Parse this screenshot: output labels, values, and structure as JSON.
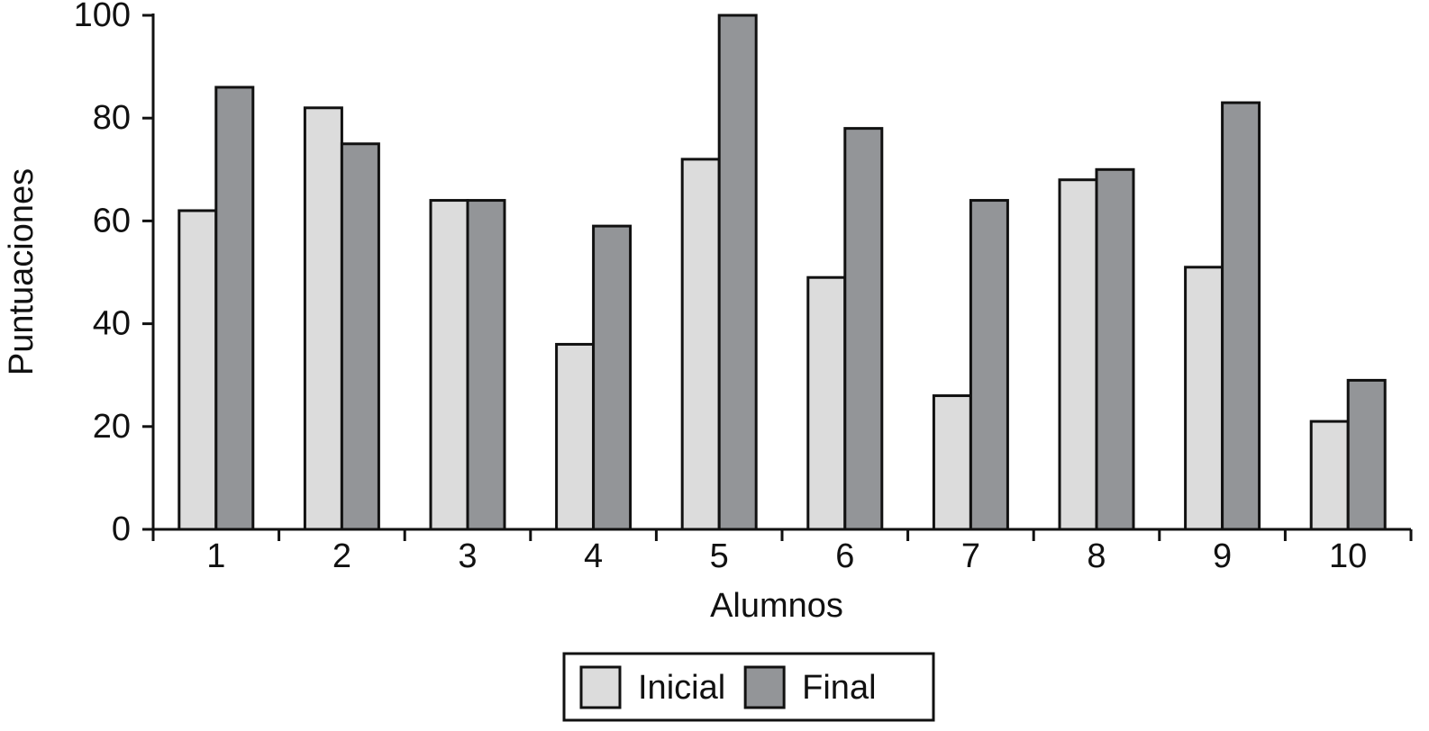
{
  "chart_data": {
    "type": "bar",
    "x_label": "Alumnos",
    "y_label": "Puntuaciones",
    "categories": [
      "1",
      "2",
      "3",
      "4",
      "5",
      "6",
      "7",
      "8",
      "9",
      "10"
    ],
    "series": [
      {
        "name": "Inicial",
        "color": "#dcdcdc",
        "values": [
          62,
          82,
          64,
          36,
          72,
          49,
          26,
          68,
          51,
          21
        ]
      },
      {
        "name": "Final",
        "color": "#939598",
        "values": [
          86,
          75,
          64,
          59,
          100,
          78,
          64,
          70,
          83,
          29
        ]
      }
    ],
    "ylim": [
      0,
      100
    ],
    "yticks": [
      0,
      20,
      40,
      60,
      80,
      100
    ],
    "grid": false
  }
}
